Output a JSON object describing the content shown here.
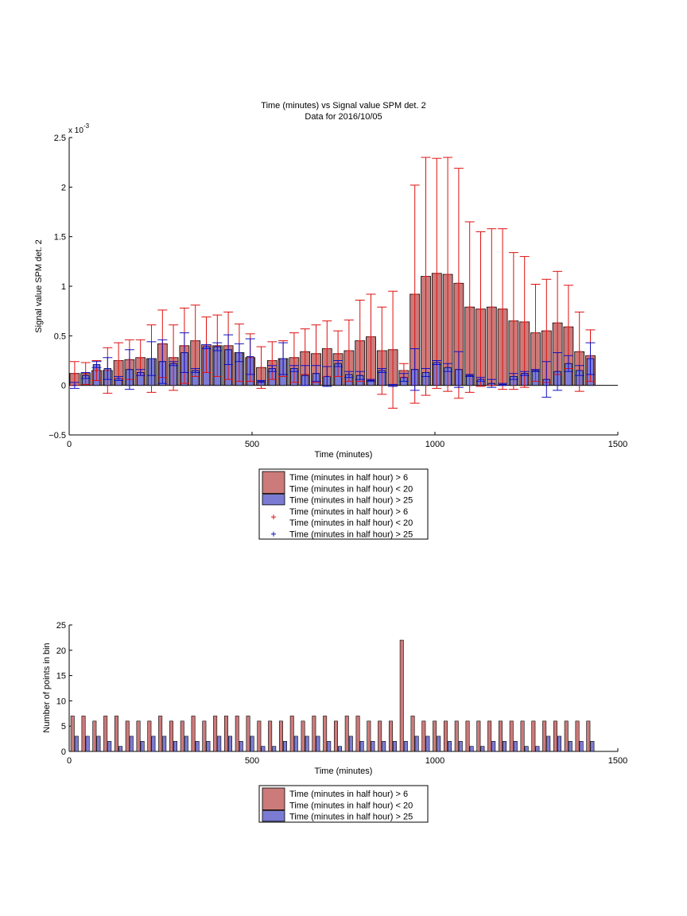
{
  "chart_data": [
    {
      "type": "bar",
      "title": "Time (minutes) vs Signal value SPM det. 2",
      "subtitle": "Data for 2016/10/05",
      "xlabel": "Time (minutes)",
      "ylabel": "Signal value SPM det. 2",
      "exponent_label": "x 10",
      "exponent_power": "-3",
      "xlim": [
        0,
        1500
      ],
      "ylim": [
        -0.0005,
        0.0025
      ],
      "xticks": [
        0,
        500,
        1000,
        1500
      ],
      "xtick_labels": [
        "0",
        "500",
        "1000",
        "1500"
      ],
      "yticks": [
        -0.0005,
        0,
        0.0005,
        0.001,
        0.0015,
        0.002,
        0.0025
      ],
      "ytick_labels": [
        "−0.5",
        "0",
        "0.5",
        "1",
        "1.5",
        "2",
        "2.5"
      ],
      "grid": false,
      "legend_position": "below",
      "legend_entries": [
        {
          "lines": [
            "Time (minutes in half hour) > 6",
            "Time (minutes in half hour) < 20"
          ],
          "kind": "bar",
          "color": "#cc7a7a"
        },
        {
          "lines": [
            "Time (minutes in half hour) > 25"
          ],
          "kind": "bar",
          "color": "#7b7bd4"
        },
        {
          "lines": [
            "Time (minutes in half hour) > 6",
            "Time (minutes in half hour) < 20"
          ],
          "kind": "marker",
          "color": "#e01010"
        },
        {
          "lines": [
            "Time (minutes in half hour) > 25"
          ],
          "kind": "marker",
          "color": "#1010c0"
        }
      ],
      "x": [
        15,
        45,
        75,
        105,
        135,
        165,
        195,
        225,
        255,
        285,
        315,
        345,
        375,
        405,
        435,
        465,
        495,
        525,
        555,
        585,
        615,
        645,
        675,
        705,
        735,
        765,
        795,
        825,
        855,
        885,
        915,
        945,
        975,
        1005,
        1035,
        1065,
        1095,
        1125,
        1155,
        1185,
        1215,
        1245,
        1275,
        1305,
        1335,
        1365,
        1395,
        1425
      ],
      "series": [
        {
          "name": "Time (minutes in half hour) > 6",
          "name2": "Time (minutes in half hour) < 20",
          "color": "#cc7a7a",
          "error_color": "#e01010",
          "values": [
            0.00012,
            0.00012,
            0.00015,
            0.00015,
            0.00025,
            0.00026,
            0.00028,
            0.00027,
            0.00042,
            0.00028,
            0.0004,
            0.00045,
            0.00041,
            0.0004,
            0.0004,
            0.00033,
            0.00028,
            0.00018,
            0.00025,
            0.00027,
            0.00028,
            0.00034,
            0.00032,
            0.00037,
            0.00032,
            0.00035,
            0.00045,
            0.00049,
            0.00035,
            0.00036,
            0.00015,
            0.00092,
            0.0011,
            0.00113,
            0.00112,
            0.00103,
            0.00079,
            0.00077,
            0.00079,
            0.00077,
            0.00065,
            0.00064,
            0.00053,
            0.00055,
            0.00063,
            0.00059,
            0.00034,
            0.0003
          ],
          "errors": [
            0.00012,
            0.00011,
            0.0001,
            0.00023,
            0.00018,
            0.0002,
            0.00018,
            0.00034,
            0.00034,
            0.00033,
            0.00038,
            0.00036,
            0.00028,
            0.00031,
            0.00034,
            0.00029,
            0.00024,
            0.00021,
            0.00019,
            0.00018,
            0.00025,
            0.00023,
            0.00029,
            0.00028,
            0.00023,
            0.00031,
            0.00041,
            0.00043,
            0.00044,
            0.00059,
            7e-05,
            0.0011,
            0.0012,
            0.00116,
            0.00118,
            0.00116,
            0.00086,
            0.00078,
            0.00079,
            0.00081,
            0.00069,
            0.00066,
            0.00049,
            0.00052,
            0.00052,
            0.00042,
            0.0004,
            0.00026
          ]
        },
        {
          "name": "Time (minutes in half hour) > 25",
          "color": "#7b7bd4",
          "error_color": "#1010c0",
          "values": [
            0.0,
            0.0001,
            0.00021,
            0.00017,
            7e-05,
            0.00016,
            0.00013,
            0.00027,
            0.00024,
            0.00022,
            0.00033,
            0.00015,
            0.00039,
            0.00039,
            0.00036,
            0.00033,
            0.00029,
            4e-05,
            0.00017,
            0.00027,
            0.00017,
            0.0001,
            0.00012,
            9e-05,
            0.00022,
            0.00011,
            0.0001,
            5e-05,
            0.00015,
            0.0,
            8e-05,
            0.00016,
            0.00013,
            0.00023,
            0.00018,
            0.00016,
            0.0001,
            6e-05,
            2e-05,
            1e-05,
            9e-05,
            0.00012,
            0.00015,
            6e-05,
            0.00014,
            0.00022,
            0.00015,
            0.00027
          ],
          "errors": [
            3e-05,
            3e-05,
            3e-05,
            0.00011,
            2e-05,
            0.0002,
            3e-05,
            0.00017,
            0.00022,
            2e-05,
            0.0002,
            2e-05,
            2e-05,
            4e-05,
            0.00015,
            9e-05,
            0.00018,
            1e-05,
            3e-05,
            0.00016,
            3e-05,
            0.0001,
            8e-05,
            0.0001,
            3e-05,
            3e-05,
            4e-05,
            1e-05,
            2e-05,
            1e-05,
            4e-05,
            0.00021,
            4e-05,
            2e-05,
            4e-05,
            0.00018,
            1e-05,
            2e-05,
            4e-05,
            1e-05,
            3e-05,
            2e-05,
            1e-05,
            0.00018,
            0.00019,
            8e-05,
            5e-05,
            0.00016
          ]
        }
      ]
    },
    {
      "type": "bar",
      "xlabel": "Time (minutes)",
      "ylabel": "Number of points in bin",
      "xlim": [
        0,
        1500
      ],
      "ylim": [
        0,
        25
      ],
      "xticks": [
        0,
        500,
        1000,
        1500
      ],
      "xtick_labels": [
        "0",
        "500",
        "1000",
        "1500"
      ],
      "yticks": [
        0,
        5,
        10,
        15,
        20,
        25
      ],
      "ytick_labels": [
        "0",
        "5",
        "10",
        "15",
        "20",
        "25"
      ],
      "grid": false,
      "legend_position": "below",
      "legend_entries": [
        {
          "lines": [
            "Time (minutes in half hour) > 6",
            "Time (minutes in half hour) < 20"
          ],
          "kind": "bar",
          "color": "#cc7a7a"
        },
        {
          "lines": [
            "Time (minutes in half hour) > 25"
          ],
          "kind": "bar",
          "color": "#7b7bd4"
        }
      ],
      "x": [
        15,
        45,
        75,
        105,
        135,
        165,
        195,
        225,
        255,
        285,
        315,
        345,
        375,
        405,
        435,
        465,
        495,
        525,
        555,
        585,
        615,
        645,
        675,
        705,
        735,
        765,
        795,
        825,
        855,
        885,
        915,
        945,
        975,
        1005,
        1035,
        1065,
        1095,
        1125,
        1155,
        1185,
        1215,
        1245,
        1275,
        1305,
        1335,
        1365,
        1395,
        1425
      ],
      "series": [
        {
          "name": "Time (minutes in half hour) > 6",
          "name2": "Time (minutes in half hour) < 20",
          "color": "#cc7a7a",
          "values": [
            7,
            7,
            6,
            7,
            7,
            6,
            6,
            6,
            7,
            6,
            6,
            7,
            6,
            7,
            7,
            7,
            7,
            6,
            6,
            6,
            7,
            6,
            7,
            7,
            6,
            7,
            7,
            6,
            6,
            6,
            22,
            7,
            6,
            6,
            6,
            6,
            6,
            6,
            6,
            6,
            6,
            6,
            6,
            6,
            6,
            6,
            6,
            6
          ]
        },
        {
          "name": "Time (minutes in half hour) > 25",
          "color": "#7b7bd4",
          "values": [
            3,
            3,
            3,
            2,
            1,
            3,
            2,
            3,
            3,
            2,
            3,
            2,
            2,
            3,
            3,
            2,
            3,
            1,
            1,
            2,
            3,
            3,
            3,
            2,
            1,
            3,
            2,
            2,
            2,
            2,
            2,
            3,
            3,
            3,
            2,
            2,
            1,
            1,
            2,
            2,
            2,
            1,
            1,
            3,
            3,
            2,
            2,
            2
          ]
        }
      ]
    }
  ]
}
